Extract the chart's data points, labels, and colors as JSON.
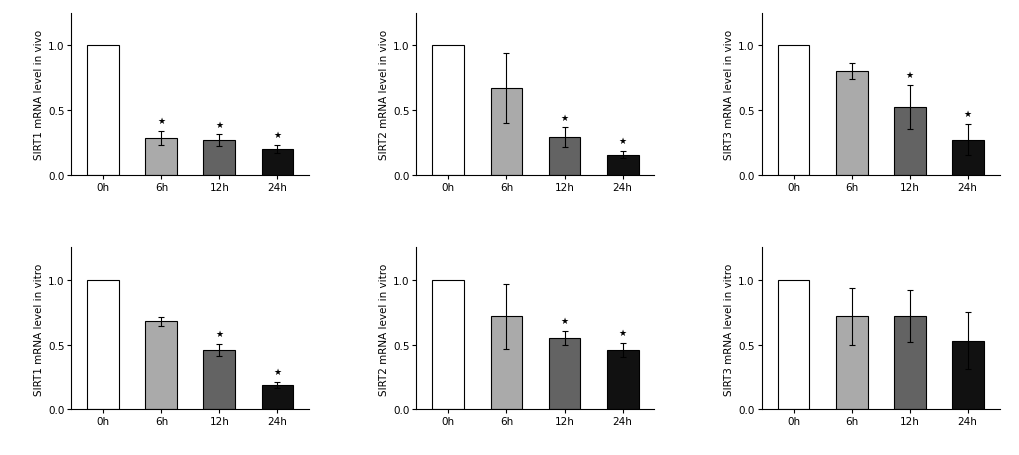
{
  "panels": [
    {
      "ylabel": "SIRT1 mRNA level in vivo",
      "values": [
        1.0,
        0.28,
        0.265,
        0.2
      ],
      "errors": [
        0.0,
        0.055,
        0.045,
        0.03
      ],
      "colors": [
        "#ffffff",
        "#aaaaaa",
        "#636363",
        "#111111"
      ],
      "star": [
        false,
        true,
        true,
        true
      ],
      "row": 0,
      "col": 0
    },
    {
      "ylabel": "SIRT2 mRNA level in vivo",
      "values": [
        1.0,
        0.67,
        0.29,
        0.155
      ],
      "errors": [
        0.0,
        0.27,
        0.075,
        0.03
      ],
      "colors": [
        "#ffffff",
        "#aaaaaa",
        "#636363",
        "#111111"
      ],
      "star": [
        false,
        false,
        true,
        true
      ],
      "row": 0,
      "col": 1
    },
    {
      "ylabel": "SIRT3 mRNA level in vivo",
      "values": [
        1.0,
        0.8,
        0.52,
        0.27
      ],
      "errors": [
        0.0,
        0.065,
        0.17,
        0.12
      ],
      "colors": [
        "#ffffff",
        "#aaaaaa",
        "#636363",
        "#111111"
      ],
      "star": [
        false,
        false,
        true,
        true
      ],
      "row": 0,
      "col": 2
    },
    {
      "ylabel": "SIRT1 mRNA level in vitro",
      "values": [
        1.0,
        0.68,
        0.46,
        0.19
      ],
      "errors": [
        0.0,
        0.035,
        0.045,
        0.025
      ],
      "colors": [
        "#ffffff",
        "#aaaaaa",
        "#636363",
        "#111111"
      ],
      "star": [
        false,
        false,
        true,
        true
      ],
      "row": 1,
      "col": 0
    },
    {
      "ylabel": "SIRT2 mRNA level in vitro",
      "values": [
        1.0,
        0.72,
        0.55,
        0.46
      ],
      "errors": [
        0.0,
        0.25,
        0.055,
        0.055
      ],
      "colors": [
        "#ffffff",
        "#aaaaaa",
        "#636363",
        "#111111"
      ],
      "star": [
        false,
        false,
        true,
        true
      ],
      "row": 1,
      "col": 1
    },
    {
      "ylabel": "SIRT3 mRNA level in vitro",
      "values": [
        1.0,
        0.72,
        0.72,
        0.53
      ],
      "errors": [
        0.0,
        0.22,
        0.2,
        0.22
      ],
      "colors": [
        "#ffffff",
        "#aaaaaa",
        "#636363",
        "#111111"
      ],
      "star": [
        false,
        false,
        false,
        false
      ],
      "row": 1,
      "col": 2
    }
  ],
  "xtick_labels": [
    "0h",
    "6h",
    "12h",
    "24h"
  ],
  "ylim": [
    0,
    1.25
  ],
  "yticks": [
    0.0,
    0.5,
    1.0
  ],
  "background_color": "#ffffff",
  "bar_width": 0.55,
  "edgecolor": "#000000",
  "linewidth": 0.8
}
